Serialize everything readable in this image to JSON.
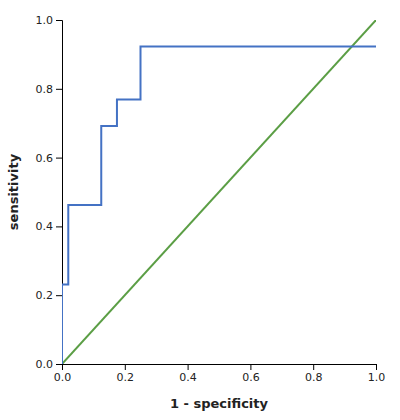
{
  "chart_data": {
    "type": "line",
    "xlabel": "1 - specificity",
    "ylabel": "sensitivity",
    "xlim": [
      0.0,
      1.0
    ],
    "ylim": [
      0.0,
      1.0
    ],
    "xticks": [
      {
        "value": 0.0,
        "label": "0.0"
      },
      0.2,
      0.4,
      0.6,
      0.8,
      {
        "value": 1.0,
        "label": "1.0"
      }
    ],
    "yticks": [
      {
        "value": 0.0,
        "label": "0.0"
      },
      0.2,
      0.4,
      0.6,
      0.8,
      {
        "value": 1.0,
        "label": "1.0"
      }
    ],
    "grid": false,
    "series": [
      {
        "x": [
          0.0,
          1.0
        ],
        "values": [
          0.0,
          1.0
        ],
        "color": "#5B9E45"
      },
      {
        "x": [
          0.0,
          0.0,
          0.02,
          0.02,
          0.125,
          0.125,
          0.175,
          0.175,
          0.25,
          0.25,
          0.5,
          1.0
        ],
        "values": [
          0.0,
          0.231,
          0.231,
          0.462,
          0.462,
          0.692,
          0.692,
          0.769,
          0.769,
          0.923,
          0.923,
          0.923
        ],
        "color": "#4472C4"
      }
    ]
  }
}
